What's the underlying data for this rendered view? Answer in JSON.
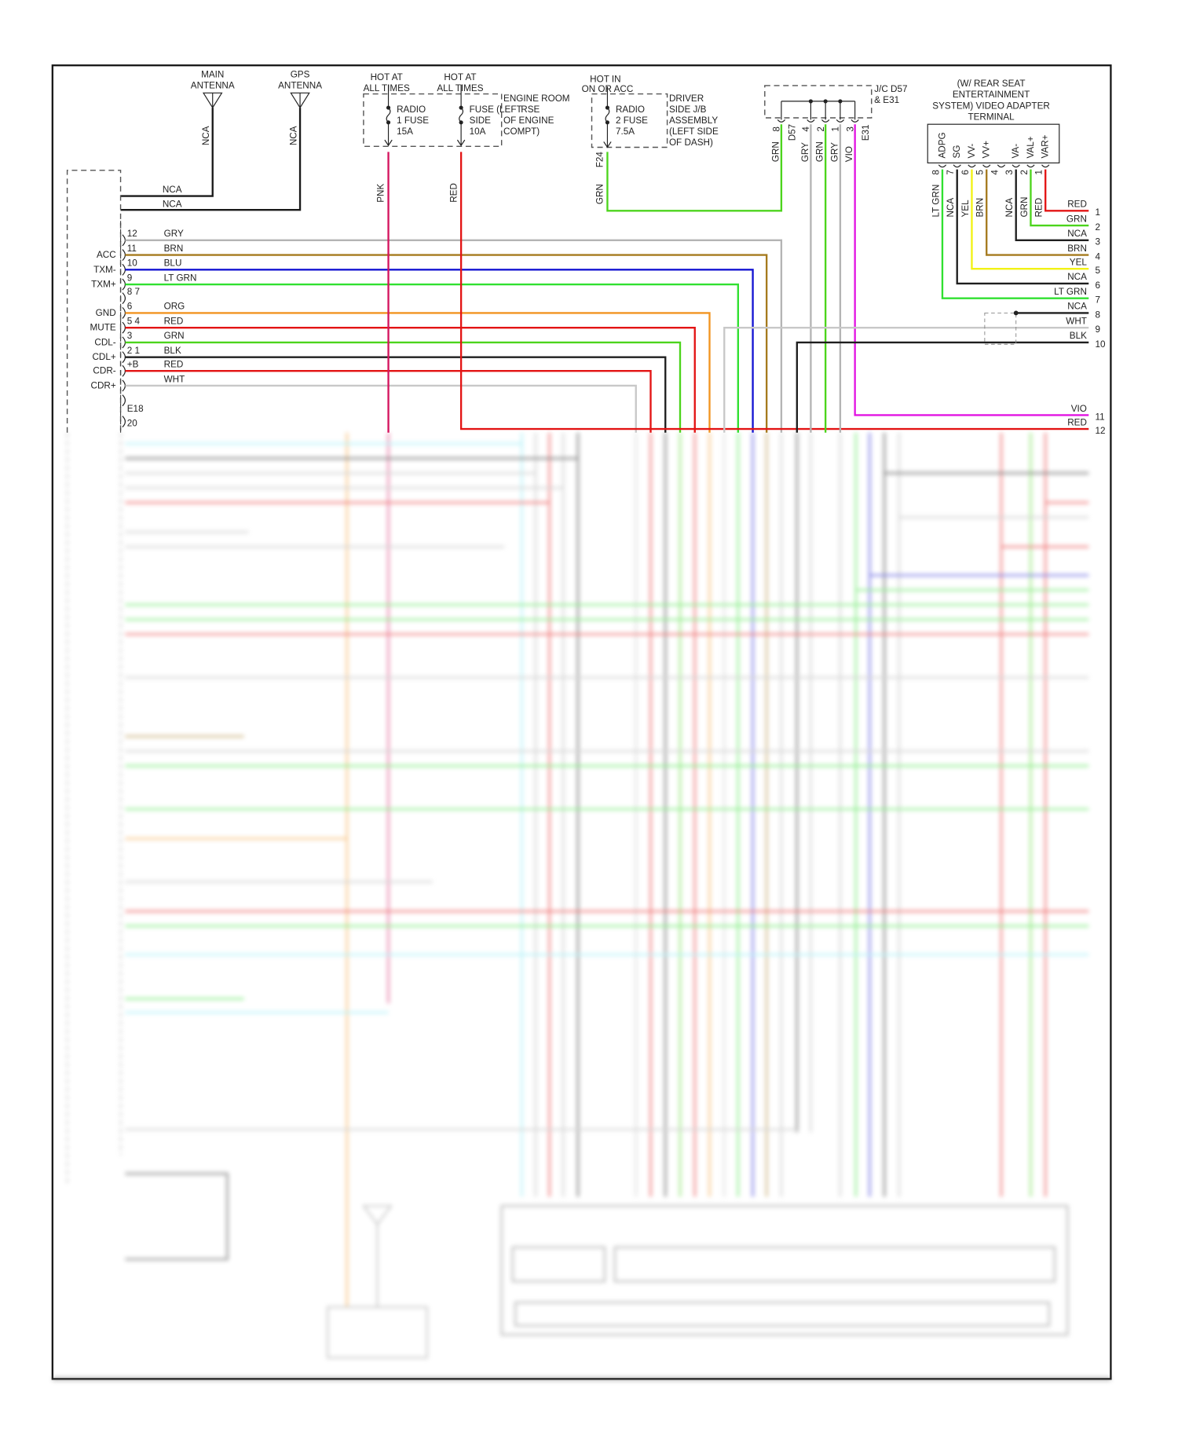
{
  "antennas": [
    {
      "title": [
        "MAIN",
        "ANTENNA"
      ],
      "wire_label": "NCA",
      "harness_label": "NCA"
    },
    {
      "title": [
        "GPS",
        "ANTENNA"
      ],
      "wire_label": "NCA",
      "harness_label": "NCA"
    }
  ],
  "engine_room_fuses": {
    "hot_labels": [
      [
        "HOT AT",
        "ALL TIMES"
      ],
      [
        "HOT AT",
        "ALL TIMES"
      ]
    ],
    "fuse1": [
      "RADIO",
      "1 FUSE",
      "15A"
    ],
    "fuse2": [
      "FUSE (LEFT",
      "SIDE",
      "10A"
    ],
    "box_label": [
      "ENGINE ROOM",
      "RSE",
      "OF ENGINE",
      "COMPT)"
    ],
    "wires": [
      "PNK",
      "RED"
    ]
  },
  "driver_jb": {
    "hot_label": [
      "HOT IN",
      "ON OR ACC"
    ],
    "fuse": [
      "RADIO",
      "2 FUSE",
      "7.5A"
    ],
    "box_label": [
      "DRIVER",
      "SIDE J/B",
      "ASSEMBLY",
      "(LEFT SIDE",
      "OF DASH)"
    ],
    "connector": "F24",
    "wire": "GRN"
  },
  "junction": {
    "label": [
      "J/C D57",
      "& E31"
    ],
    "pins": [
      "8",
      "4",
      "2",
      "1",
      "3"
    ],
    "connectors": [
      "D57",
      "E31"
    ],
    "wires": [
      "GRN",
      "GRY",
      "GRN",
      "GRY",
      "VIO"
    ]
  },
  "video_adapter": {
    "title": [
      "(W/ REAR SEAT",
      "ENTERTAINMENT",
      "SYSTEM) VIDEO ADAPTER",
      "TERMINAL"
    ],
    "pins": [
      {
        "name": "ADPG",
        "num": "8",
        "wire": "LT GRN"
      },
      {
        "name": "SG",
        "num": "7",
        "wire": "NCA"
      },
      {
        "name": "VV-",
        "num": "6",
        "wire": "YEL"
      },
      {
        "name": "VV+",
        "num": "5",
        "wire": "BRN"
      },
      {
        "name": "",
        "num": "4",
        "wire": ""
      },
      {
        "name": "VA-",
        "num": "3",
        "wire": "NCA"
      },
      {
        "name": "VAL+",
        "num": "2",
        "wire": "GRN"
      },
      {
        "name": "VAR+",
        "num": "1",
        "wire": "RED"
      }
    ]
  },
  "left_connector": {
    "rows": [
      {
        "signal": "",
        "pin": "12",
        "wire": "GRY"
      },
      {
        "signal": "ACC",
        "pin": "11",
        "wire": "BRN"
      },
      {
        "signal": "TXM-",
        "pin": "10",
        "wire": "BLU"
      },
      {
        "signal": "TXM+",
        "pin": "9",
        "wire": "LT GRN"
      },
      {
        "signal": "",
        "pin": "8 7",
        "wire": ""
      },
      {
        "signal": "GND",
        "pin": "6",
        "wire": "ORG"
      },
      {
        "signal": "MUTE",
        "pin": "5 4",
        "wire": "RED"
      },
      {
        "signal": "CDL-",
        "pin": "3",
        "wire": "GRN"
      },
      {
        "signal": "CDL+",
        "pin": "2 1",
        "wire": "BLK"
      },
      {
        "signal": "CDR-",
        "pin": "+B",
        "wire": "RED"
      },
      {
        "signal": "CDR+",
        "pin": "",
        "wire": "WHT"
      }
    ],
    "connector": "E18",
    "next_pin": "20"
  },
  "right_terminals": [
    {
      "num": "1",
      "wire": "RED"
    },
    {
      "num": "2",
      "wire": "GRN"
    },
    {
      "num": "3",
      "wire": "NCA"
    },
    {
      "num": "4",
      "wire": "BRN"
    },
    {
      "num": "5",
      "wire": "YEL"
    },
    {
      "num": "6",
      "wire": "NCA"
    },
    {
      "num": "7",
      "wire": "LT GRN"
    },
    {
      "num": "8",
      "wire": "NCA"
    },
    {
      "num": "9",
      "wire": "WHT"
    },
    {
      "num": "10",
      "wire": "BLK"
    },
    {
      "num": "11",
      "wire": "VIO"
    },
    {
      "num": "12",
      "wire": "RED"
    }
  ],
  "colors": {
    "GRY": "#b4b4b4",
    "BRN": "#a57a1e",
    "BLU": "#1414d2",
    "LT GRN": "#30e030",
    "ORG": "#f29420",
    "RED": "#e31414",
    "GRN": "#4cd41c",
    "BLK": "#1e1e1e",
    "WHT": "#c8c8c8",
    "PNK": "#d4145e",
    "VIO": "#e214e2",
    "YEL": "#f2f214",
    "NCA": "#1e1e1e",
    "CYAN": "#7fe8f4"
  }
}
